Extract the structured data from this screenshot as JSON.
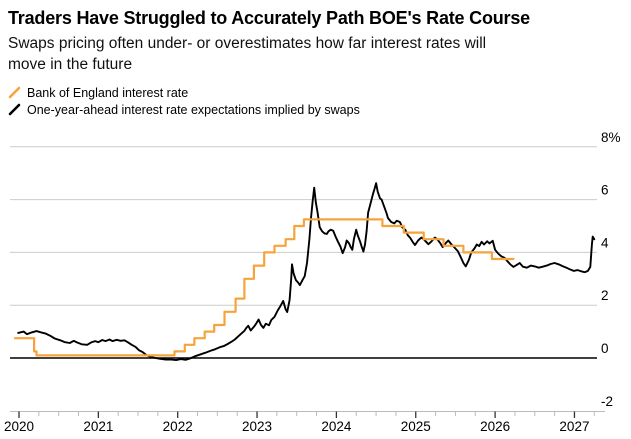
{
  "chart_data": {
    "type": "line",
    "title": "Traders Have Struggled to Accurately Path BOE's Rate Course",
    "subtitle_lines": [
      "Swaps pricing often under- or overestimates how far interest rates will",
      "move in the future"
    ],
    "legend_position": "top-left",
    "grid": true,
    "x_range": [
      2019.88,
      2027.45
    ],
    "y_range": [
      -2,
      8
    ],
    "y_gridlines": [
      8,
      6,
      4,
      2
    ],
    "baseline_value": 0,
    "x_ticks": [
      2020,
      2021,
      2022,
      2023,
      2024,
      2025,
      2026,
      2027
    ],
    "x_tick_labels": [
      "2020",
      "2021",
      "2022",
      "2023",
      "2024",
      "2025",
      "2026",
      "2027"
    ],
    "x_minor_tick_step": 0.25,
    "y_tick_labels": [
      {
        "value": 8,
        "label": "8%"
      },
      {
        "value": 6,
        "label": "6"
      },
      {
        "value": 4,
        "label": "4"
      },
      {
        "value": 2,
        "label": "2"
      },
      {
        "value": 0,
        "label": "0"
      },
      {
        "value": -2,
        "label": "-2"
      }
    ],
    "series": [
      {
        "name": "Bank of England interest rate",
        "color": "#F7A33B",
        "style": "step",
        "points": [
          [
            2019.95,
            0.75
          ],
          [
            2020.19,
            0.25
          ],
          [
            2020.22,
            0.1
          ],
          [
            2021.96,
            0.25
          ],
          [
            2022.09,
            0.5
          ],
          [
            2022.21,
            0.75
          ],
          [
            2022.34,
            1.0
          ],
          [
            2022.46,
            1.25
          ],
          [
            2022.59,
            1.75
          ],
          [
            2022.73,
            2.25
          ],
          [
            2022.84,
            3.0
          ],
          [
            2022.96,
            3.5
          ],
          [
            2023.09,
            4.0
          ],
          [
            2023.22,
            4.25
          ],
          [
            2023.36,
            4.5
          ],
          [
            2023.47,
            5.0
          ],
          [
            2023.59,
            5.25
          ],
          [
            2024.58,
            5.0
          ],
          [
            2024.85,
            4.75
          ],
          [
            2025.1,
            4.5
          ],
          [
            2025.35,
            4.25
          ],
          [
            2025.6,
            4.0
          ],
          [
            2025.96,
            3.75
          ],
          [
            2026.23,
            3.75
          ]
        ]
      },
      {
        "name": "One-year-ahead interest rate expectations implied by swaps",
        "color": "#000000",
        "style": "line",
        "points": [
          [
            2019.99,
            0.95
          ],
          [
            2020.06,
            1.0
          ],
          [
            2020.1,
            0.9
          ],
          [
            2020.16,
            0.97
          ],
          [
            2020.22,
            1.02
          ],
          [
            2020.28,
            0.97
          ],
          [
            2020.33,
            0.93
          ],
          [
            2020.39,
            0.85
          ],
          [
            2020.45,
            0.74
          ],
          [
            2020.52,
            0.67
          ],
          [
            2020.58,
            0.6
          ],
          [
            2020.64,
            0.57
          ],
          [
            2020.69,
            0.65
          ],
          [
            2020.73,
            0.59
          ],
          [
            2020.79,
            0.52
          ],
          [
            2020.86,
            0.5
          ],
          [
            2020.91,
            0.59
          ],
          [
            2020.96,
            0.64
          ],
          [
            2021.0,
            0.6
          ],
          [
            2021.05,
            0.68
          ],
          [
            2021.09,
            0.64
          ],
          [
            2021.14,
            0.7
          ],
          [
            2021.18,
            0.64
          ],
          [
            2021.23,
            0.69
          ],
          [
            2021.28,
            0.65
          ],
          [
            2021.33,
            0.67
          ],
          [
            2021.37,
            0.6
          ],
          [
            2021.42,
            0.5
          ],
          [
            2021.47,
            0.42
          ],
          [
            2021.51,
            0.3
          ],
          [
            2021.56,
            0.22
          ],
          [
            2021.61,
            0.1
          ],
          [
            2021.66,
            0.04
          ],
          [
            2021.72,
            0.0
          ],
          [
            2021.78,
            -0.03
          ],
          [
            2021.85,
            -0.06
          ],
          [
            2021.92,
            -0.06
          ],
          [
            2021.98,
            -0.08
          ],
          [
            2022.04,
            -0.04
          ],
          [
            2022.1,
            -0.07
          ],
          [
            2022.16,
            -0.01
          ],
          [
            2022.22,
            0.07
          ],
          [
            2022.29,
            0.14
          ],
          [
            2022.35,
            0.2
          ],
          [
            2022.41,
            0.27
          ],
          [
            2022.47,
            0.33
          ],
          [
            2022.53,
            0.41
          ],
          [
            2022.58,
            0.45
          ],
          [
            2022.63,
            0.53
          ],
          [
            2022.68,
            0.62
          ],
          [
            2022.72,
            0.7
          ],
          [
            2022.76,
            0.81
          ],
          [
            2022.8,
            0.92
          ],
          [
            2022.84,
            1.03
          ],
          [
            2022.87,
            1.16
          ],
          [
            2022.89,
            1.22
          ],
          [
            2022.92,
            1.04
          ],
          [
            2022.96,
            1.18
          ],
          [
            2022.99,
            1.31
          ],
          [
            2023.02,
            1.46
          ],
          [
            2023.05,
            1.25
          ],
          [
            2023.08,
            1.14
          ],
          [
            2023.11,
            1.3
          ],
          [
            2023.15,
            1.24
          ],
          [
            2023.18,
            1.44
          ],
          [
            2023.22,
            1.56
          ],
          [
            2023.26,
            1.8
          ],
          [
            2023.3,
            2.0
          ],
          [
            2023.33,
            2.16
          ],
          [
            2023.36,
            1.85
          ],
          [
            2023.38,
            1.74
          ],
          [
            2023.41,
            2.2
          ],
          [
            2023.43,
            3.0
          ],
          [
            2023.44,
            3.55
          ],
          [
            2023.46,
            3.2
          ],
          [
            2023.49,
            2.95
          ],
          [
            2023.52,
            2.85
          ],
          [
            2023.54,
            2.76
          ],
          [
            2023.57,
            2.94
          ],
          [
            2023.6,
            3.1
          ],
          [
            2023.63,
            3.6
          ],
          [
            2023.66,
            4.5
          ],
          [
            2023.68,
            5.3
          ],
          [
            2023.7,
            5.92
          ],
          [
            2023.72,
            6.45
          ],
          [
            2023.74,
            5.9
          ],
          [
            2023.76,
            5.55
          ],
          [
            2023.79,
            4.96
          ],
          [
            2023.82,
            4.8
          ],
          [
            2023.85,
            4.72
          ],
          [
            2023.88,
            4.7
          ],
          [
            2023.9,
            4.8
          ],
          [
            2023.93,
            4.86
          ],
          [
            2023.96,
            4.82
          ],
          [
            2023.99,
            4.6
          ],
          [
            2024.02,
            4.4
          ],
          [
            2024.05,
            4.22
          ],
          [
            2024.08,
            3.97
          ],
          [
            2024.11,
            4.2
          ],
          [
            2024.13,
            4.45
          ],
          [
            2024.16,
            4.34
          ],
          [
            2024.18,
            4.2
          ],
          [
            2024.2,
            4.1
          ],
          [
            2024.22,
            4.5
          ],
          [
            2024.25,
            4.86
          ],
          [
            2024.27,
            4.64
          ],
          [
            2024.3,
            4.4
          ],
          [
            2024.32,
            4.2
          ],
          [
            2024.34,
            4.03
          ],
          [
            2024.36,
            4.3
          ],
          [
            2024.38,
            4.8
          ],
          [
            2024.4,
            5.5
          ],
          [
            2024.43,
            5.85
          ],
          [
            2024.46,
            6.2
          ],
          [
            2024.48,
            6.4
          ],
          [
            2024.5,
            6.62
          ],
          [
            2024.52,
            6.3
          ],
          [
            2024.55,
            6.05
          ],
          [
            2024.57,
            6.0
          ],
          [
            2024.6,
            5.75
          ],
          [
            2024.63,
            5.5
          ],
          [
            2024.65,
            5.3
          ],
          [
            2024.69,
            5.15
          ],
          [
            2024.73,
            5.1
          ],
          [
            2024.76,
            5.2
          ],
          [
            2024.8,
            5.15
          ],
          [
            2024.83,
            4.95
          ],
          [
            2024.87,
            4.85
          ],
          [
            2024.9,
            4.65
          ],
          [
            2024.93,
            4.55
          ],
          [
            2024.96,
            4.4
          ],
          [
            2024.99,
            4.28
          ],
          [
            2025.03,
            4.45
          ],
          [
            2025.07,
            4.56
          ],
          [
            2025.1,
            4.5
          ],
          [
            2025.13,
            4.4
          ],
          [
            2025.16,
            4.31
          ],
          [
            2025.2,
            4.42
          ],
          [
            2025.24,
            4.56
          ],
          [
            2025.27,
            4.5
          ],
          [
            2025.31,
            4.35
          ],
          [
            2025.34,
            4.2
          ],
          [
            2025.38,
            4.36
          ],
          [
            2025.41,
            4.45
          ],
          [
            2025.45,
            4.3
          ],
          [
            2025.49,
            4.18
          ],
          [
            2025.53,
            4.05
          ],
          [
            2025.57,
            3.8
          ],
          [
            2025.6,
            3.6
          ],
          [
            2025.63,
            3.47
          ],
          [
            2025.67,
            3.72
          ],
          [
            2025.7,
            4.0
          ],
          [
            2025.74,
            4.15
          ],
          [
            2025.77,
            4.3
          ],
          [
            2025.8,
            4.24
          ],
          [
            2025.83,
            4.4
          ],
          [
            2025.86,
            4.3
          ],
          [
            2025.9,
            4.42
          ],
          [
            2025.93,
            4.34
          ],
          [
            2025.97,
            4.44
          ],
          [
            2026.0,
            4.1
          ],
          [
            2026.04,
            3.95
          ],
          [
            2026.08,
            3.85
          ],
          [
            2026.12,
            3.79
          ],
          [
            2026.16,
            3.65
          ],
          [
            2026.19,
            3.55
          ],
          [
            2026.23,
            3.45
          ],
          [
            2026.27,
            3.52
          ],
          [
            2026.31,
            3.6
          ],
          [
            2026.35,
            3.46
          ],
          [
            2026.4,
            3.42
          ],
          [
            2026.45,
            3.5
          ],
          [
            2026.5,
            3.47
          ],
          [
            2026.55,
            3.42
          ],
          [
            2026.6,
            3.46
          ],
          [
            2026.65,
            3.5
          ],
          [
            2026.7,
            3.56
          ],
          [
            2026.75,
            3.6
          ],
          [
            2026.8,
            3.55
          ],
          [
            2026.85,
            3.48
          ],
          [
            2026.9,
            3.42
          ],
          [
            2026.94,
            3.36
          ],
          [
            2026.99,
            3.3
          ],
          [
            2027.04,
            3.33
          ],
          [
            2027.09,
            3.28
          ],
          [
            2027.13,
            3.25
          ],
          [
            2027.17,
            3.3
          ],
          [
            2027.2,
            3.45
          ],
          [
            2027.22,
            4.3
          ],
          [
            2027.23,
            4.6
          ],
          [
            2027.25,
            4.5
          ]
        ]
      }
    ]
  }
}
